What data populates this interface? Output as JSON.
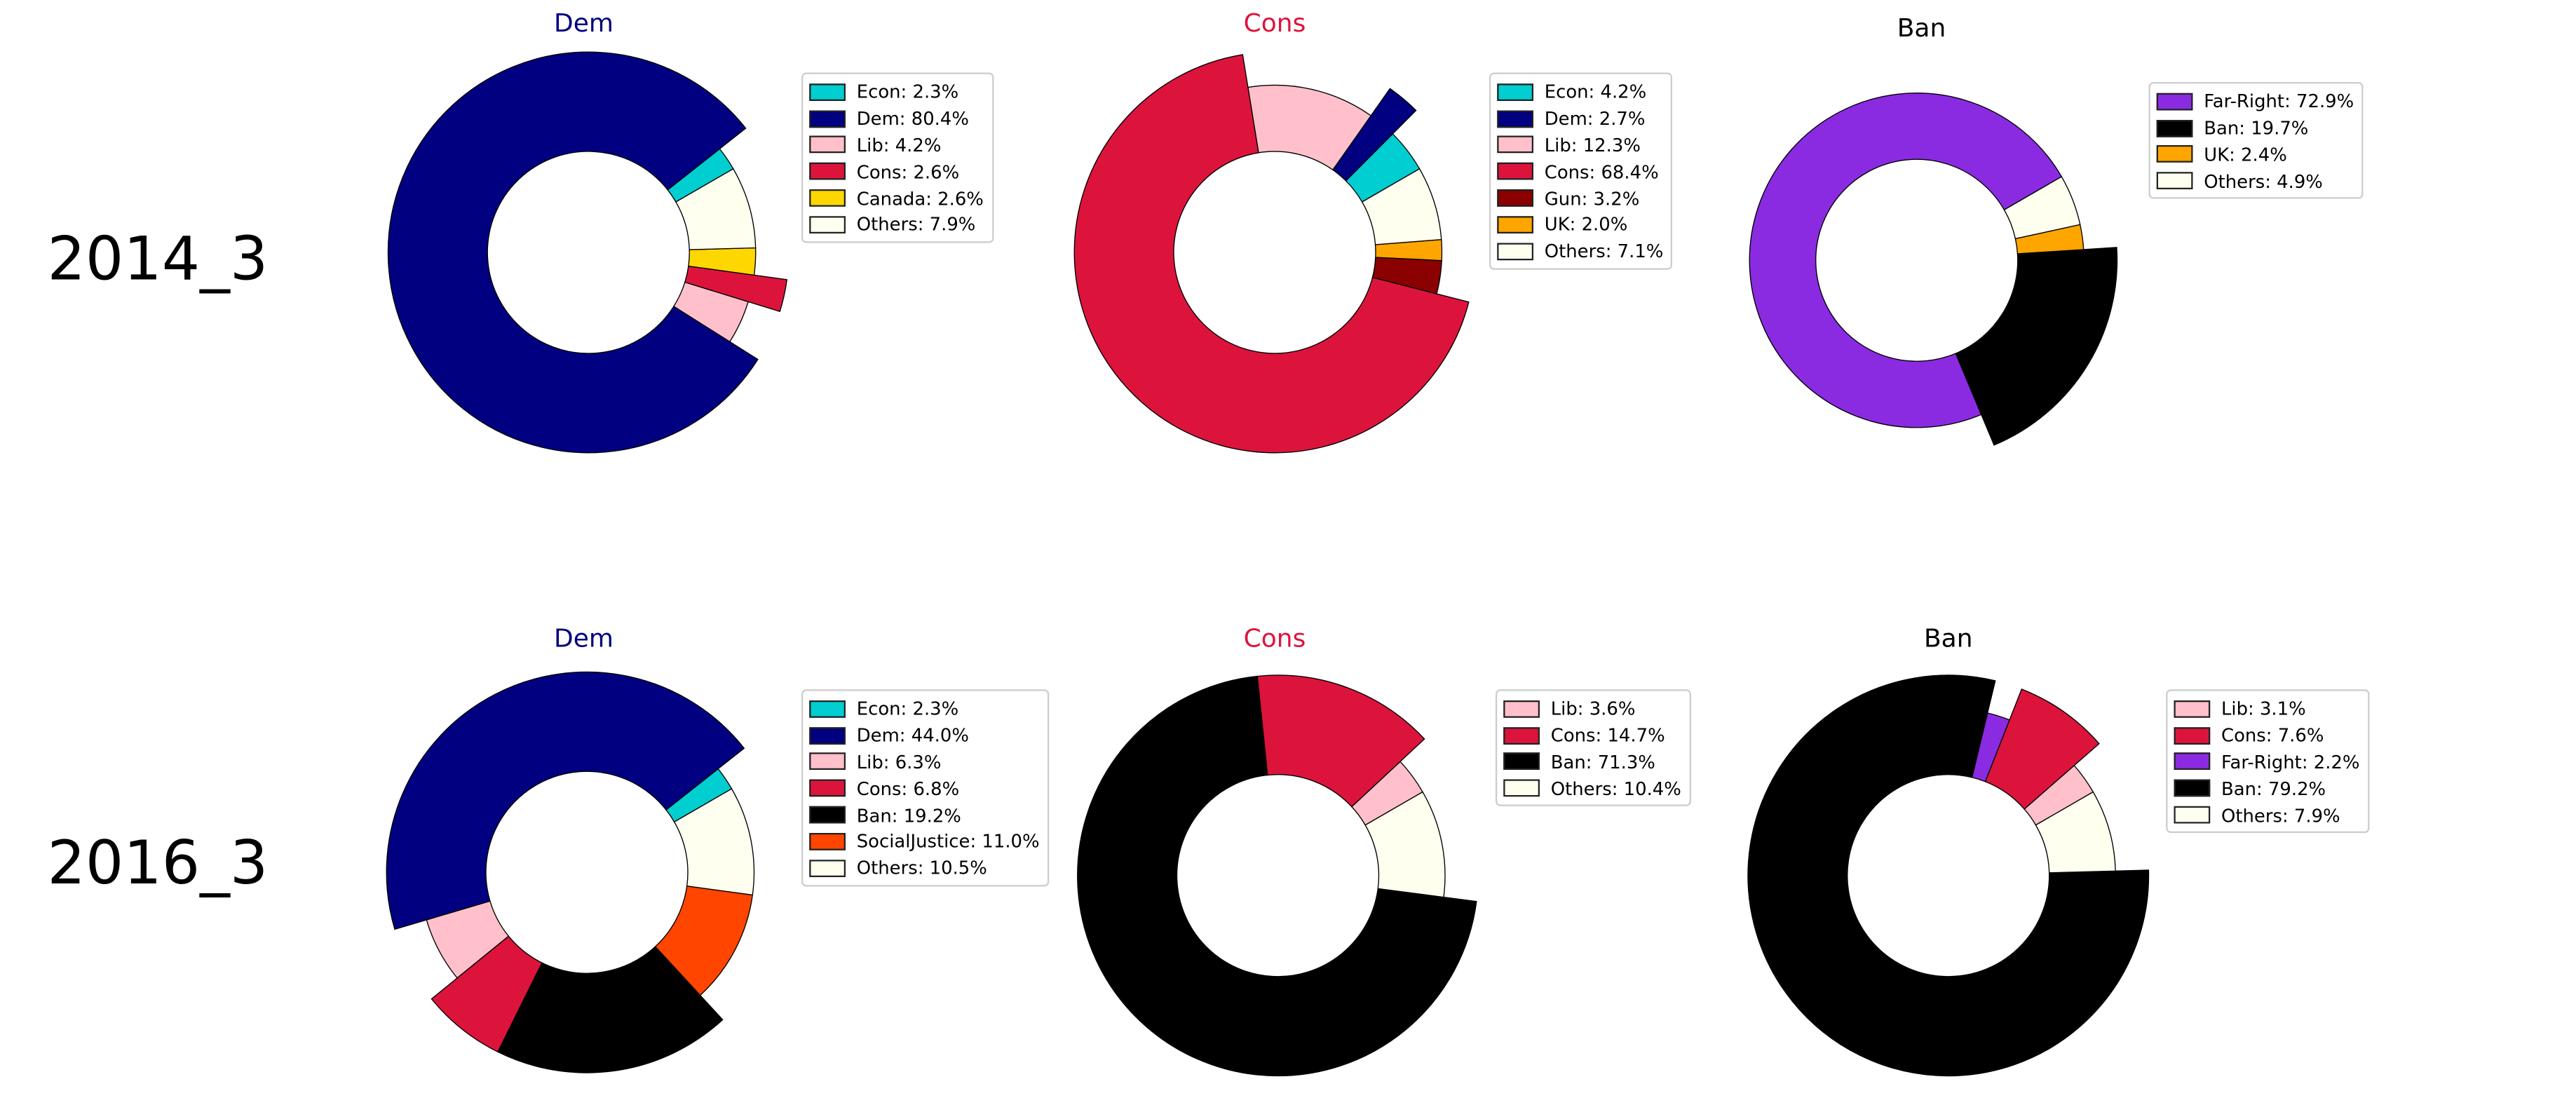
{
  "row_labels": [
    "2014_3",
    "2016_3"
  ],
  "chart_data": [
    {
      "type": "pie",
      "row": "2014_3",
      "title": "Dem",
      "title_color": "#000080",
      "slices": [
        {
          "label": "Econ",
          "value": 2.3,
          "color": "#00CED1",
          "highlighted": false,
          "legend": "Econ: 2.3%"
        },
        {
          "label": "Dem",
          "value": 80.4,
          "color": "#000080",
          "highlighted": true,
          "legend": "Dem: 80.4%"
        },
        {
          "label": "Lib",
          "value": 4.2,
          "color": "#FFC0CB",
          "highlighted": false,
          "legend": "Lib: 4.2%"
        },
        {
          "label": "Cons",
          "value": 2.6,
          "color": "#DC143C",
          "highlighted": true,
          "legend": "Cons: 2.6%"
        },
        {
          "label": "Canada",
          "value": 2.6,
          "color": "#FFD700",
          "highlighted": false,
          "legend": "Canada: 2.6%"
        },
        {
          "label": "Others",
          "value": 7.9,
          "color": "#FFFFF0",
          "highlighted": false,
          "legend": "Others: 7.9%"
        }
      ]
    },
    {
      "type": "pie",
      "row": "2014_3",
      "title": "Cons",
      "title_color": "#DC143C",
      "slices": [
        {
          "label": "Econ",
          "value": 4.2,
          "color": "#00CED1",
          "highlighted": false,
          "legend": "Econ: 4.2%"
        },
        {
          "label": "Dem",
          "value": 2.7,
          "color": "#000080",
          "highlighted": true,
          "legend": "Dem: 2.7%"
        },
        {
          "label": "Lib",
          "value": 12.3,
          "color": "#FFC0CB",
          "highlighted": false,
          "legend": "Lib: 12.3%"
        },
        {
          "label": "Cons",
          "value": 68.4,
          "color": "#DC143C",
          "highlighted": true,
          "legend": "Cons: 68.4%"
        },
        {
          "label": "Gun",
          "value": 3.2,
          "color": "#8B0000",
          "highlighted": false,
          "legend": "Gun: 3.2%"
        },
        {
          "label": "UK",
          "value": 2.0,
          "color": "#FFA500",
          "highlighted": false,
          "legend": "UK: 2.0%"
        },
        {
          "label": "Others",
          "value": 7.1,
          "color": "#FFFFF0",
          "highlighted": false,
          "legend": "Others: 7.1%"
        }
      ]
    },
    {
      "type": "pie",
      "row": "2014_3",
      "title": "Ban",
      "title_color": "#000000",
      "slices": [
        {
          "label": "Far-Right",
          "value": 72.9,
          "color": "#8A2BE2",
          "highlighted": false,
          "legend": "Far-Right: 72.9%"
        },
        {
          "label": "Ban",
          "value": 19.7,
          "color": "#000000",
          "highlighted": true,
          "legend": "Ban: 19.7%"
        },
        {
          "label": "UK",
          "value": 2.4,
          "color": "#FFA500",
          "highlighted": false,
          "legend": "UK: 2.4%"
        },
        {
          "label": "Others",
          "value": 4.9,
          "color": "#FFFFF0",
          "highlighted": false,
          "legend": "Others: 4.9%"
        }
      ]
    },
    {
      "type": "pie",
      "row": "2016_3",
      "title": "Dem",
      "title_color": "#000080",
      "slices": [
        {
          "label": "Econ",
          "value": 2.3,
          "color": "#00CED1",
          "highlighted": false,
          "legend": "Econ: 2.3%"
        },
        {
          "label": "Dem",
          "value": 44.0,
          "color": "#000080",
          "highlighted": true,
          "legend": "Dem: 44.0%"
        },
        {
          "label": "Lib",
          "value": 6.3,
          "color": "#FFC0CB",
          "highlighted": false,
          "legend": "Lib: 6.3%"
        },
        {
          "label": "Cons",
          "value": 6.8,
          "color": "#DC143C",
          "highlighted": true,
          "legend": "Cons: 6.8%"
        },
        {
          "label": "Ban",
          "value": 19.2,
          "color": "#000000",
          "highlighted": true,
          "legend": "Ban: 19.2%"
        },
        {
          "label": "SocialJustice",
          "value": 11.0,
          "color": "#FF4500",
          "highlighted": false,
          "legend": "SocialJustice: 11.0%"
        },
        {
          "label": "Others",
          "value": 10.5,
          "color": "#FFFFF0",
          "highlighted": false,
          "legend": "Others: 10.5%"
        }
      ]
    },
    {
      "type": "pie",
      "row": "2016_3",
      "title": "Cons",
      "title_color": "#DC143C",
      "slices": [
        {
          "label": "Lib",
          "value": 3.6,
          "color": "#FFC0CB",
          "highlighted": false,
          "legend": "Lib: 3.6%"
        },
        {
          "label": "Cons",
          "value": 14.7,
          "color": "#DC143C",
          "highlighted": true,
          "legend": "Cons: 14.7%"
        },
        {
          "label": "Ban",
          "value": 71.3,
          "color": "#000000",
          "highlighted": true,
          "legend": "Ban: 71.3%"
        },
        {
          "label": "Others",
          "value": 10.4,
          "color": "#FFFFF0",
          "highlighted": false,
          "legend": "Others: 10.4%"
        }
      ]
    },
    {
      "type": "pie",
      "row": "2016_3",
      "title": "Ban",
      "title_color": "#000000",
      "slices": [
        {
          "label": "Lib",
          "value": 3.1,
          "color": "#FFC0CB",
          "highlighted": false,
          "legend": "Lib: 3.1%"
        },
        {
          "label": "Cons",
          "value": 7.6,
          "color": "#DC143C",
          "highlighted": true,
          "legend": "Cons: 7.6%"
        },
        {
          "label": "Far-Right",
          "value": 2.2,
          "color": "#8A2BE2",
          "highlighted": false,
          "legend": "Far-Right: 2.2%"
        },
        {
          "label": "Ban",
          "value": 79.2,
          "color": "#000000",
          "highlighted": true,
          "legend": "Ban: 79.2%"
        },
        {
          "label": "Others",
          "value": 7.9,
          "color": "#FFFFF0",
          "highlighted": false,
          "legend": "Others: 7.9%"
        }
      ]
    }
  ]
}
